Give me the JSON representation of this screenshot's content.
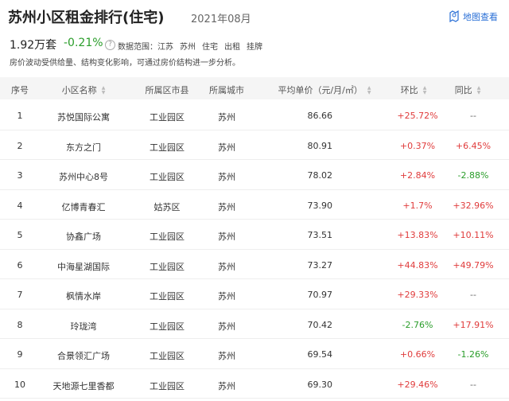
{
  "header": {
    "title": "苏州小区租金排行(住宅)",
    "date": "2021年08月",
    "map_link": "地图查看",
    "count": "1.92万套",
    "change": "-0.21%",
    "help": "?",
    "scope_label": "数据范围：",
    "scope": [
      "江苏",
      "苏州",
      "住宅",
      "出租",
      "挂牌"
    ],
    "note": "房价波动受供给量、结构变化影响，可通过房价结构进一步分析。"
  },
  "table": {
    "columns": [
      "序号",
      "小区名称",
      "所属区市县",
      "所属城市",
      "平均单价（元/月/㎡）",
      "环比",
      "同比"
    ],
    "rows": [
      [
        "1",
        "苏悦国际公寓",
        "工业园区",
        "苏州",
        "86.66",
        "+25.72%",
        "--"
      ],
      [
        "2",
        "东方之门",
        "工业园区",
        "苏州",
        "80.91",
        "+0.37%",
        "+6.45%"
      ],
      [
        "3",
        "苏州中心8号",
        "工业园区",
        "苏州",
        "78.02",
        "+2.84%",
        "-2.88%"
      ],
      [
        "4",
        "亿博青春汇",
        "姑苏区",
        "苏州",
        "73.90",
        "+1.7%",
        "+32.96%"
      ],
      [
        "5",
        "协鑫广场",
        "工业园区",
        "苏州",
        "73.51",
        "+13.83%",
        "+10.11%"
      ],
      [
        "6",
        "中海星湖国际",
        "工业园区",
        "苏州",
        "73.27",
        "+44.83%",
        "+49.79%"
      ],
      [
        "7",
        "枫情水岸",
        "工业园区",
        "苏州",
        "70.97",
        "+29.33%",
        "--"
      ],
      [
        "8",
        "玲珑湾",
        "工业园区",
        "苏州",
        "70.42",
        "-2.76%",
        "+17.91%"
      ],
      [
        "9",
        "合景领汇广场",
        "工业园区",
        "苏州",
        "69.54",
        "+0.66%",
        "-1.26%"
      ],
      [
        "10",
        "天地源七里香都",
        "工业园区",
        "苏州",
        "69.30",
        "+29.46%",
        "--"
      ]
    ]
  }
}
